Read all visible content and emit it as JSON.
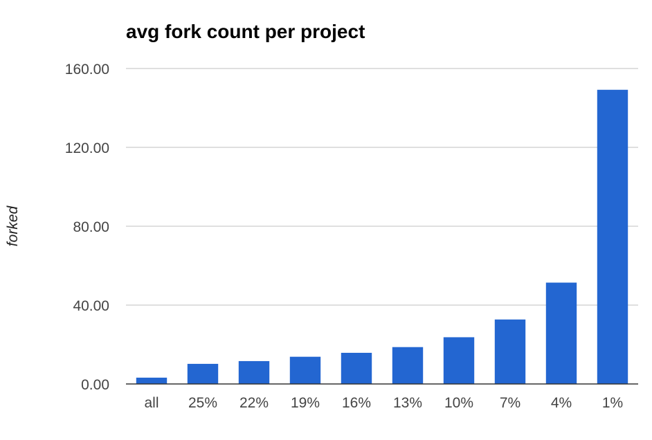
{
  "chart_data": {
    "type": "bar",
    "title": "avg fork count per project",
    "xlabel": "",
    "ylabel": "forked",
    "categories": [
      "all",
      "25%",
      "22%",
      "19%",
      "16%",
      "13%",
      "10%",
      "7%",
      "4%",
      "1%"
    ],
    "values": [
      3.2,
      10.2,
      11.6,
      13.8,
      15.8,
      18.7,
      23.7,
      32.7,
      51.4,
      149.2
    ],
    "ylim": [
      0,
      160
    ],
    "yticks": [
      "0.00",
      "40.00",
      "80.00",
      "120.00",
      "160.00"
    ],
    "grid": true,
    "legend": "none",
    "colors": {
      "bar": "#2366d1",
      "grid": "#cccccc",
      "baseline": "#333333"
    }
  }
}
